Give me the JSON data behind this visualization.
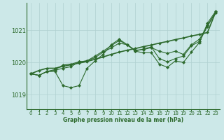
{
  "title": "Graphe pression niveau de la mer (hPa)",
  "bg_color": "#cce8e8",
  "grid_color": "#b0d0d0",
  "line_color": "#2d6a2d",
  "marker_color": "#2d6a2d",
  "ylim": [
    1018.55,
    1021.85
  ],
  "yticks": [
    1019,
    1020,
    1021
  ],
  "xlim": [
    -0.5,
    23.5
  ],
  "xticks": [
    0,
    1,
    2,
    3,
    4,
    5,
    6,
    7,
    8,
    9,
    10,
    11,
    12,
    13,
    14,
    15,
    16,
    17,
    18,
    19,
    20,
    21,
    22,
    23
  ],
  "series": [
    [
      1019.65,
      1019.75,
      1019.82,
      1019.82,
      1019.88,
      1019.93,
      1019.98,
      1020.03,
      1020.1,
      1020.17,
      1020.25,
      1020.32,
      1020.38,
      1020.43,
      1020.49,
      1020.54,
      1020.6,
      1020.65,
      1020.71,
      1020.76,
      1020.82,
      1020.87,
      1020.93,
      1021.55
    ],
    [
      1019.65,
      1019.6,
      1019.72,
      1019.72,
      1019.28,
      1019.22,
      1019.28,
      1019.82,
      1020.05,
      1020.25,
      1020.55,
      1020.72,
      1020.55,
      1020.35,
      1020.3,
      1020.3,
      1019.95,
      1019.85,
      1020.05,
      1020.0,
      1020.32,
      1020.62,
      1021.22,
      1021.58
    ],
    [
      1019.65,
      1019.6,
      1019.72,
      1019.78,
      1019.92,
      1019.95,
      1020.02,
      1020.05,
      1020.15,
      1020.32,
      1020.45,
      1020.6,
      1020.55,
      1020.35,
      1020.42,
      1020.48,
      1020.12,
      1020.02,
      1020.12,
      1020.2,
      1020.52,
      1020.65,
      1021.12,
      1021.55
    ],
    [
      1019.65,
      1019.6,
      1019.72,
      1019.76,
      1019.82,
      1019.87,
      1020.02,
      1020.05,
      1020.2,
      1020.35,
      1020.52,
      1020.68,
      1020.55,
      1020.38,
      1020.4,
      1020.46,
      1020.35,
      1020.28,
      1020.35,
      1020.25,
      1020.55,
      1020.72,
      1021.15,
      1021.55
    ]
  ]
}
